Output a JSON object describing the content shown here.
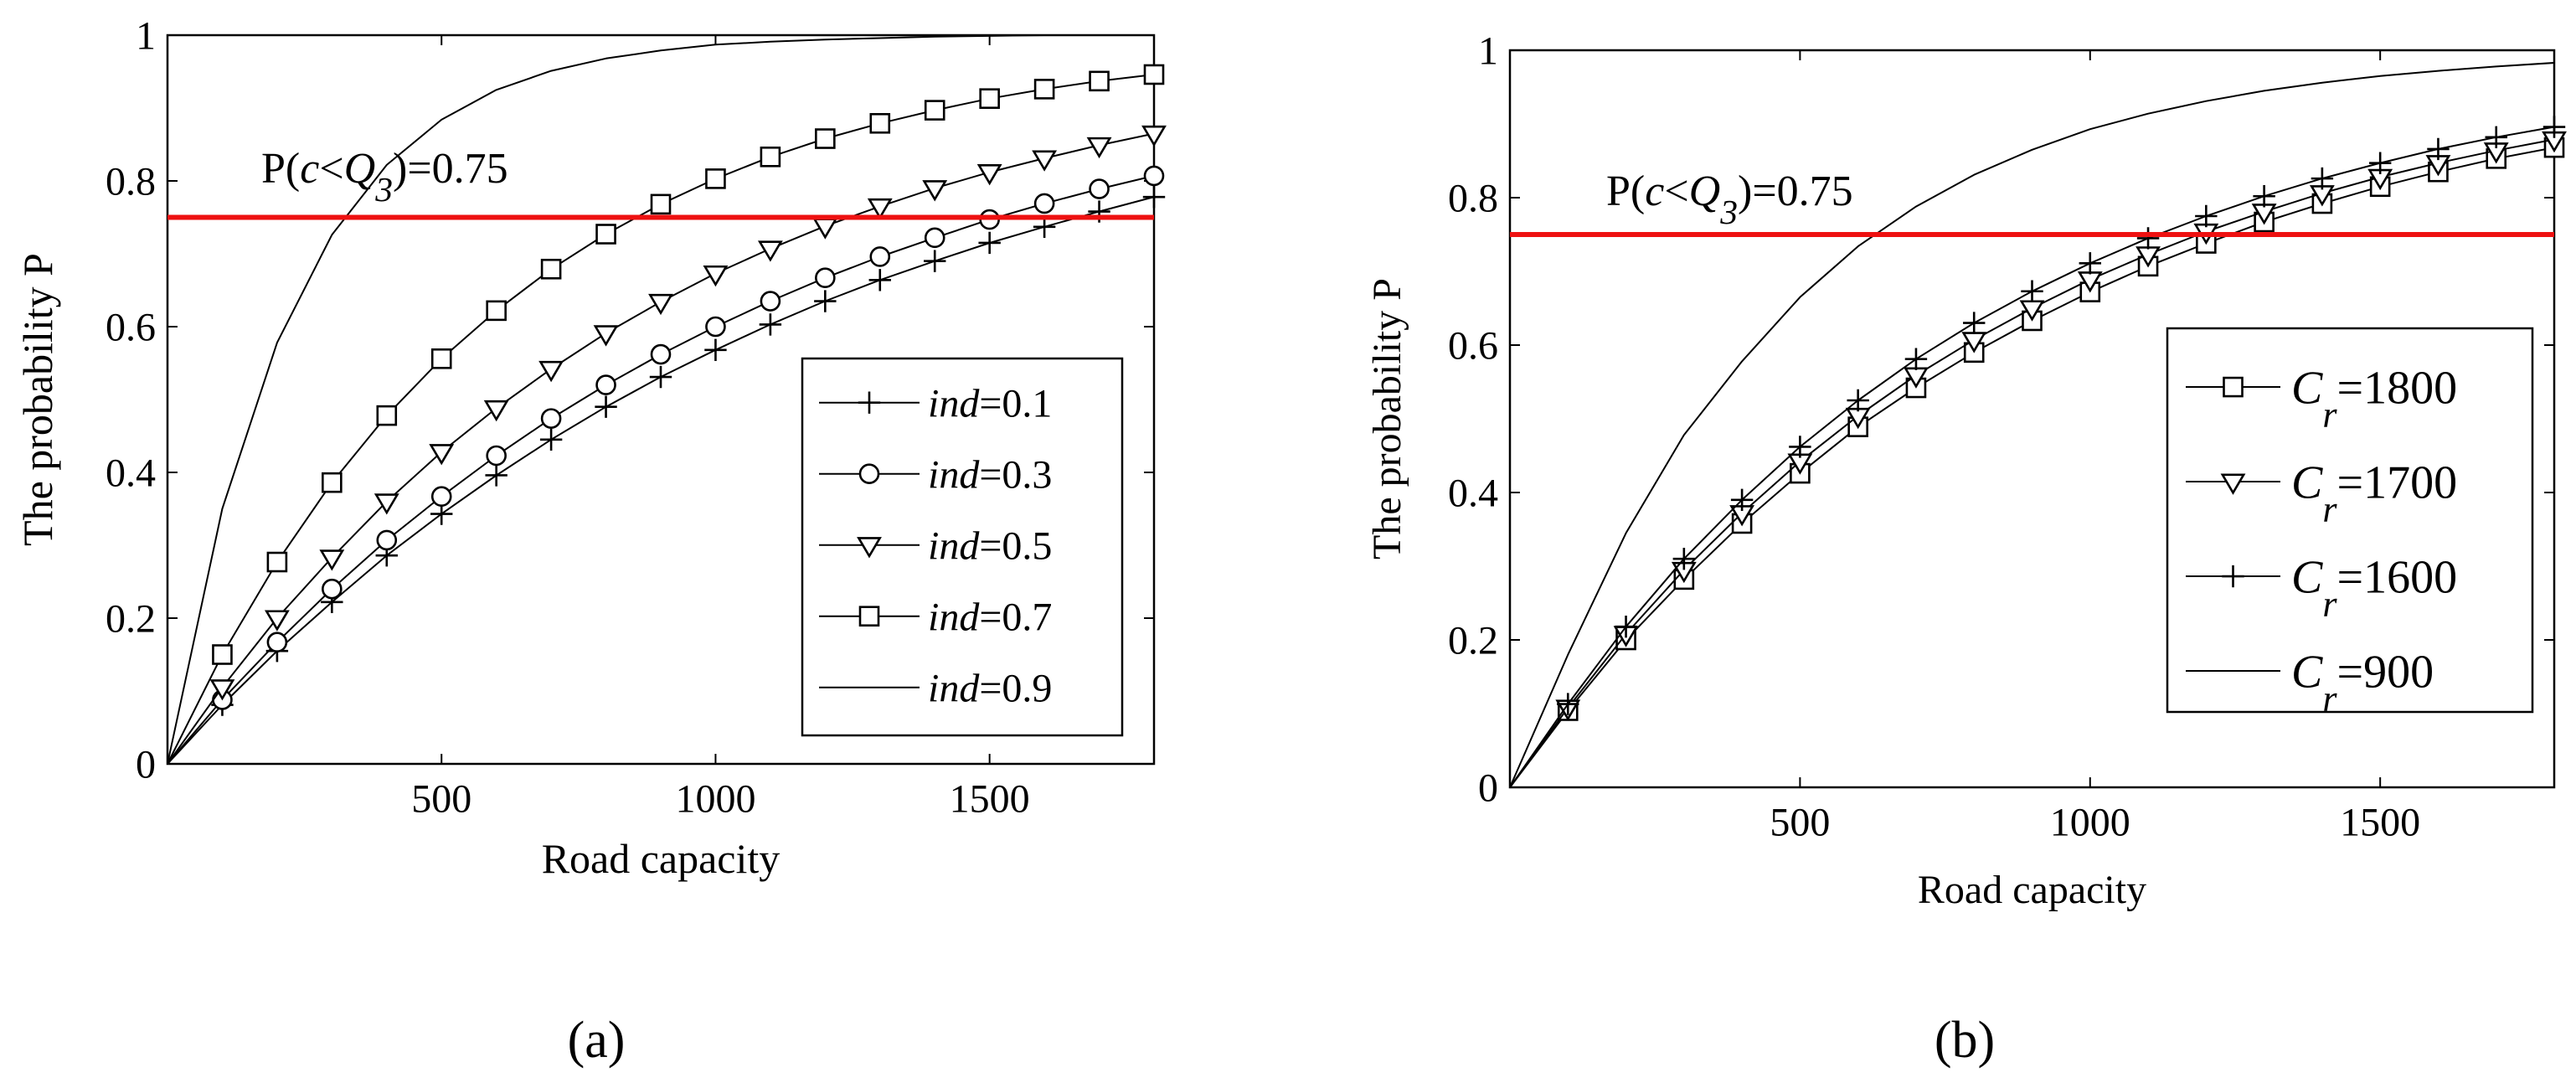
{
  "chart_data": [
    {
      "type": "line",
      "panel_label": "(a)",
      "xlabel": "Road capacity",
      "ylabel": "The probability P",
      "xlim": [
        0,
        1800
      ],
      "ylim": [
        0,
        1
      ],
      "xticks": [
        500,
        1000,
        1500
      ],
      "yticks": [
        0,
        0.2,
        0.4,
        0.6,
        0.8,
        1
      ],
      "ytick_labels": [
        "0",
        "0.2",
        "0.4",
        "0.6",
        "0.8",
        "1"
      ],
      "reference_line": {
        "y": 0.75,
        "label_prefix": "P(",
        "label_c": "c",
        "label_lt": "<",
        "label_q": "Q",
        "label_sub": "3",
        "label_suffix": ")=0.75",
        "color": "#ee1111"
      },
      "legend_location": "lower-right",
      "x": [
        0,
        100,
        200,
        300,
        400,
        500,
        600,
        700,
        800,
        900,
        1000,
        1100,
        1200,
        1300,
        1400,
        1500,
        1600,
        1700,
        1800
      ],
      "series": [
        {
          "name_italic": "ind",
          "name_rest": "=0.1",
          "marker": "plus",
          "values": [
            0,
            0.081,
            0.155,
            0.222,
            0.286,
            0.343,
            0.396,
            0.445,
            0.49,
            0.531,
            0.568,
            0.603,
            0.635,
            0.664,
            0.69,
            0.715,
            0.737,
            0.758,
            0.778
          ]
        },
        {
          "name_italic": "ind",
          "name_rest": "=0.3",
          "marker": "circle",
          "values": [
            0,
            0.088,
            0.167,
            0.24,
            0.307,
            0.367,
            0.423,
            0.474,
            0.52,
            0.562,
            0.6,
            0.635,
            0.667,
            0.696,
            0.722,
            0.747,
            0.769,
            0.789,
            0.807
          ]
        },
        {
          "name_italic": "ind",
          "name_rest": "=0.5",
          "marker": "triangle-down",
          "values": [
            0,
            0.105,
            0.2,
            0.283,
            0.36,
            0.428,
            0.488,
            0.542,
            0.591,
            0.634,
            0.673,
            0.707,
            0.738,
            0.765,
            0.79,
            0.812,
            0.831,
            0.849,
            0.865
          ]
        },
        {
          "name_italic": "ind",
          "name_rest": "=0.7",
          "marker": "square",
          "values": [
            0,
            0.15,
            0.277,
            0.386,
            0.478,
            0.556,
            0.622,
            0.679,
            0.727,
            0.768,
            0.803,
            0.833,
            0.858,
            0.879,
            0.897,
            0.913,
            0.926,
            0.937,
            0.946
          ]
        },
        {
          "name_italic": "ind",
          "name_rest": "=0.9",
          "marker": "none",
          "values": [
            0,
            0.35,
            0.578,
            0.726,
            0.822,
            0.884,
            0.925,
            0.951,
            0.968,
            0.979,
            0.987,
            0.991,
            0.994,
            0.996,
            0.998,
            0.999,
            1.0,
            1.0,
            1.0
          ]
        }
      ]
    },
    {
      "type": "line",
      "panel_label": "(b)",
      "xlabel": "Road capacity",
      "ylabel": "The probability P",
      "xlim": [
        0,
        1800
      ],
      "ylim": [
        0,
        1
      ],
      "xticks": [
        500,
        1000,
        1500
      ],
      "yticks": [
        0,
        0.2,
        0.4,
        0.6,
        0.8,
        1
      ],
      "ytick_labels": [
        "0",
        "0.2",
        "0.4",
        "0.6",
        "0.8",
        "1"
      ],
      "reference_line": {
        "y": 0.75,
        "label_prefix": "P(",
        "label_c": "c",
        "label_lt": "<",
        "label_q": "Q",
        "label_sub": "3",
        "label_suffix": ")=0.75",
        "color": "#ee1111"
      },
      "legend_location": "lower-right",
      "x": [
        0,
        100,
        200,
        300,
        400,
        500,
        600,
        700,
        800,
        900,
        1000,
        1100,
        1200,
        1300,
        1400,
        1500,
        1600,
        1700,
        1800
      ],
      "series": [
        {
          "name_main": "C",
          "name_sub": "r",
          "name_rest": "=1800",
          "marker": "square",
          "values": [
            0,
            0.104,
            0.2,
            0.282,
            0.358,
            0.426,
            0.489,
            0.542,
            0.59,
            0.633,
            0.672,
            0.707,
            0.738,
            0.767,
            0.792,
            0.815,
            0.835,
            0.853,
            0.868
          ]
        },
        {
          "name_main": "C",
          "name_sub": "r",
          "name_rest": "=1700",
          "marker": "triangle-down",
          "values": [
            0,
            0.108,
            0.208,
            0.295,
            0.372,
            0.442,
            0.504,
            0.559,
            0.607,
            0.65,
            0.689,
            0.723,
            0.754,
            0.781,
            0.806,
            0.828,
            0.847,
            0.864,
            0.879
          ]
        },
        {
          "name_main": "C",
          "name_sub": "r",
          "name_rest": "=1600",
          "marker": "plus",
          "values": [
            0,
            0.113,
            0.218,
            0.31,
            0.39,
            0.462,
            0.525,
            0.581,
            0.63,
            0.673,
            0.711,
            0.745,
            0.775,
            0.802,
            0.826,
            0.847,
            0.866,
            0.882,
            0.896
          ]
        },
        {
          "name_main": "C",
          "name_sub": "r",
          "name_rest": "=900",
          "marker": "none",
          "values": [
            0,
            0.18,
            0.345,
            0.478,
            0.578,
            0.665,
            0.734,
            0.788,
            0.831,
            0.865,
            0.893,
            0.914,
            0.931,
            0.945,
            0.956,
            0.965,
            0.972,
            0.978,
            0.983
          ]
        }
      ]
    }
  ]
}
